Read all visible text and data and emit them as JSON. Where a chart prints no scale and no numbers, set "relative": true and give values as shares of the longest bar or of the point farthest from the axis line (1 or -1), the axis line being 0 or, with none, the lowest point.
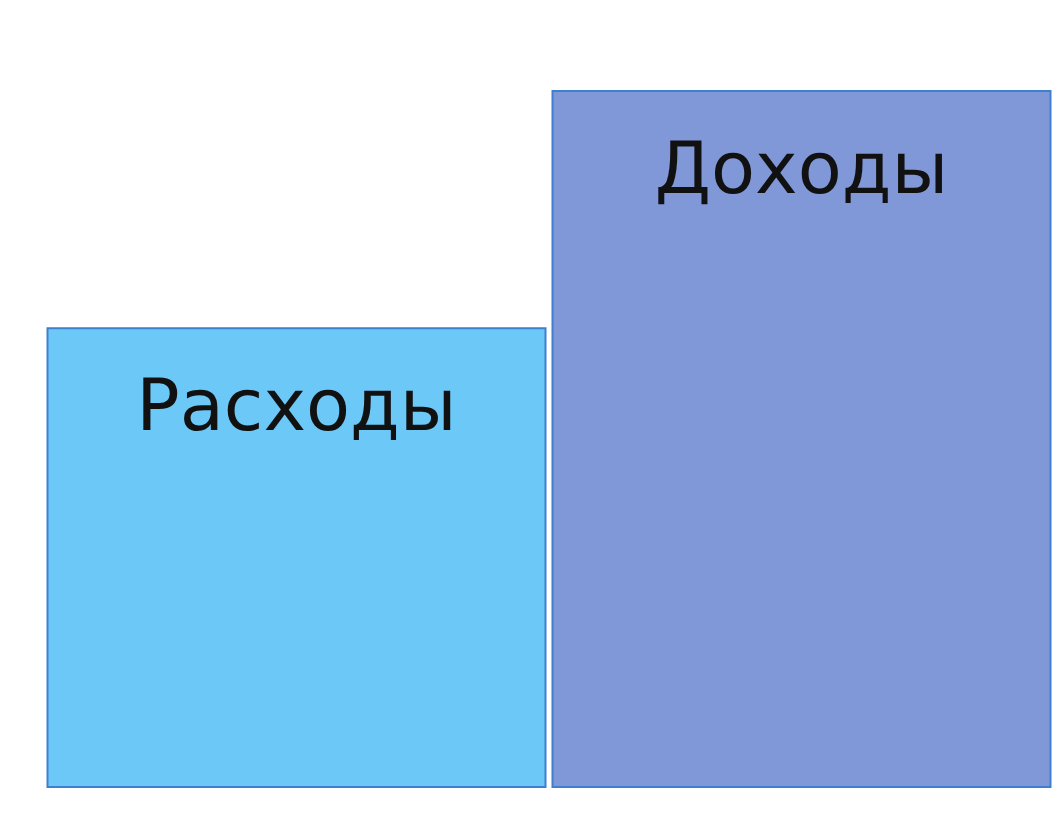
{
  "chart_data": {
    "type": "bar",
    "relative": true,
    "categories": [
      "Расходы",
      "Доходы"
    ],
    "values": [
      0.66,
      1
    ],
    "colors": [
      "#6cc8f7",
      "#8097d8"
    ]
  }
}
